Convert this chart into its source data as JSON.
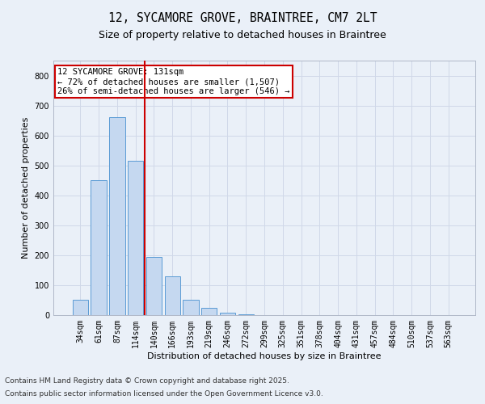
{
  "title_line1": "12, SYCAMORE GROVE, BRAINTREE, CM7 2LT",
  "title_line2": "Size of property relative to detached houses in Braintree",
  "xlabel": "Distribution of detached houses by size in Braintree",
  "ylabel": "Number of detached properties",
  "categories": [
    "34sqm",
    "61sqm",
    "87sqm",
    "114sqm",
    "140sqm",
    "166sqm",
    "193sqm",
    "219sqm",
    "246sqm",
    "272sqm",
    "299sqm",
    "325sqm",
    "351sqm",
    "378sqm",
    "404sqm",
    "431sqm",
    "457sqm",
    "484sqm",
    "510sqm",
    "537sqm",
    "563sqm"
  ],
  "values": [
    50,
    450,
    660,
    515,
    195,
    130,
    50,
    25,
    8,
    2,
    1,
    0,
    0,
    0,
    0,
    0,
    0,
    0,
    0,
    0,
    0
  ],
  "bar_color": "#c5d8f0",
  "bar_edge_color": "#5b9bd5",
  "vline_color": "#cc0000",
  "annotation_text": "12 SYCAMORE GROVE: 131sqm\n← 72% of detached houses are smaller (1,507)\n26% of semi-detached houses are larger (546) →",
  "annotation_box_color": "white",
  "annotation_box_edge_color": "#cc0000",
  "ylim": [
    0,
    850
  ],
  "yticks": [
    0,
    100,
    200,
    300,
    400,
    500,
    600,
    700,
    800
  ],
  "grid_color": "#d0d8e8",
  "background_color": "#eaf0f8",
  "footnote_line1": "Contains HM Land Registry data © Crown copyright and database right 2025.",
  "footnote_line2": "Contains public sector information licensed under the Open Government Licence v3.0.",
  "title_fontsize": 10.5,
  "subtitle_fontsize": 9,
  "axis_fontsize": 8,
  "tick_fontsize": 7,
  "annot_fontsize": 7.5,
  "footnote_fontsize": 6.5
}
